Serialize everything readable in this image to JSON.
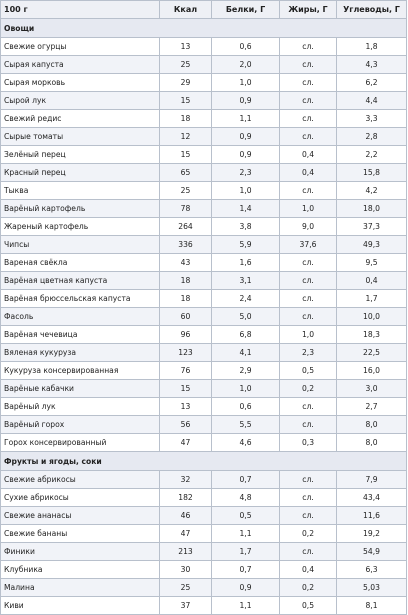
{
  "header": {
    "col0": "100 г",
    "col1": "Ккал",
    "col2": "Белки, Г",
    "col3": "Жиры, Г",
    "col4": "Углеводы, Г"
  },
  "categories": {
    "vegetables": "Овощи",
    "fruits": "Фрукты и ягоды, соки"
  },
  "vegetables": [
    [
      "Свежие огурцы",
      "13",
      "0,6",
      "сл.",
      "1,8"
    ],
    [
      "Сырая капуста",
      "25",
      "2,0",
      "сл.",
      "4,3"
    ],
    [
      "Сырая морковь",
      "29",
      "1,0",
      "сл.",
      "6,2"
    ],
    [
      "Сырой лук",
      "15",
      "0,9",
      "сл.",
      "4,4"
    ],
    [
      "Свежий редис",
      "18",
      "1,1",
      "сл.",
      "3,3"
    ],
    [
      "Сырые томаты",
      "12",
      "0,9",
      "сл.",
      "2,8"
    ],
    [
      "Зелёный перец",
      "15",
      "0,9",
      "0,4",
      "2,2"
    ],
    [
      "Красный перец",
      "65",
      "2,3",
      "0,4",
      "15,8"
    ],
    [
      "Тыква",
      "25",
      "1,0",
      "сл.",
      "4,2"
    ],
    [
      "Варёный картофель",
      "78",
      "1,4",
      "1,0",
      "18,0"
    ],
    [
      "Жареный картофель",
      "264",
      "3,8",
      "9,0",
      "37,3"
    ],
    [
      "Чипсы",
      "336",
      "5,9",
      "37,6",
      "49,3"
    ],
    [
      "Вареная свёкла",
      "43",
      "1,6",
      "сл.",
      "9,5"
    ],
    [
      "Варёная цветная капуста",
      "18",
      "3,1",
      "сл.",
      "0,4"
    ],
    [
      "Варёная брюссельская капуста",
      "18",
      "2,4",
      "сл.",
      "1,7"
    ],
    [
      "Фасоль",
      "60",
      "5,0",
      "сл.",
      "10,0"
    ],
    [
      "Варёная чечевица",
      "96",
      "6,8",
      "1,0",
      "18,3"
    ],
    [
      "Вяленая кукуруза",
      "123",
      "4,1",
      "2,3",
      "22,5"
    ],
    [
      "Кукуруза консервированная",
      "76",
      "2,9",
      "0,5",
      "16,0"
    ],
    [
      "Варёные кабачки",
      "15",
      "1,0",
      "0,2",
      "3,0"
    ],
    [
      "Варёный лук",
      "13",
      "0,6",
      "сл.",
      "2,7"
    ],
    [
      "Варёный горох",
      "56",
      "5,5",
      "сл.",
      "8,0"
    ],
    [
      "Горох консервированный",
      "47",
      "4,6",
      "0,3",
      "8,0"
    ]
  ],
  "fruits": [
    [
      "Свежие абрикосы",
      "32",
      "0,7",
      "сл.",
      "7,9"
    ],
    [
      "Сухие абрикосы",
      "182",
      "4,8",
      "сл.",
      "43,4"
    ],
    [
      "Свежие ананасы",
      "46",
      "0,5",
      "сл.",
      "11,6"
    ],
    [
      "Свежие бананы",
      "47",
      "1,1",
      "0,2",
      "19,2"
    ],
    [
      "Финики",
      "213",
      "1,7",
      "сл.",
      "54,9"
    ],
    [
      "Клубника",
      "30",
      "0,7",
      "0,4",
      "6,3"
    ],
    [
      "Малина",
      "25",
      "0,9",
      "0,2",
      "5,03"
    ],
    [
      "Киви",
      "37",
      "1,1",
      "0,5",
      "8,1"
    ]
  ]
}
